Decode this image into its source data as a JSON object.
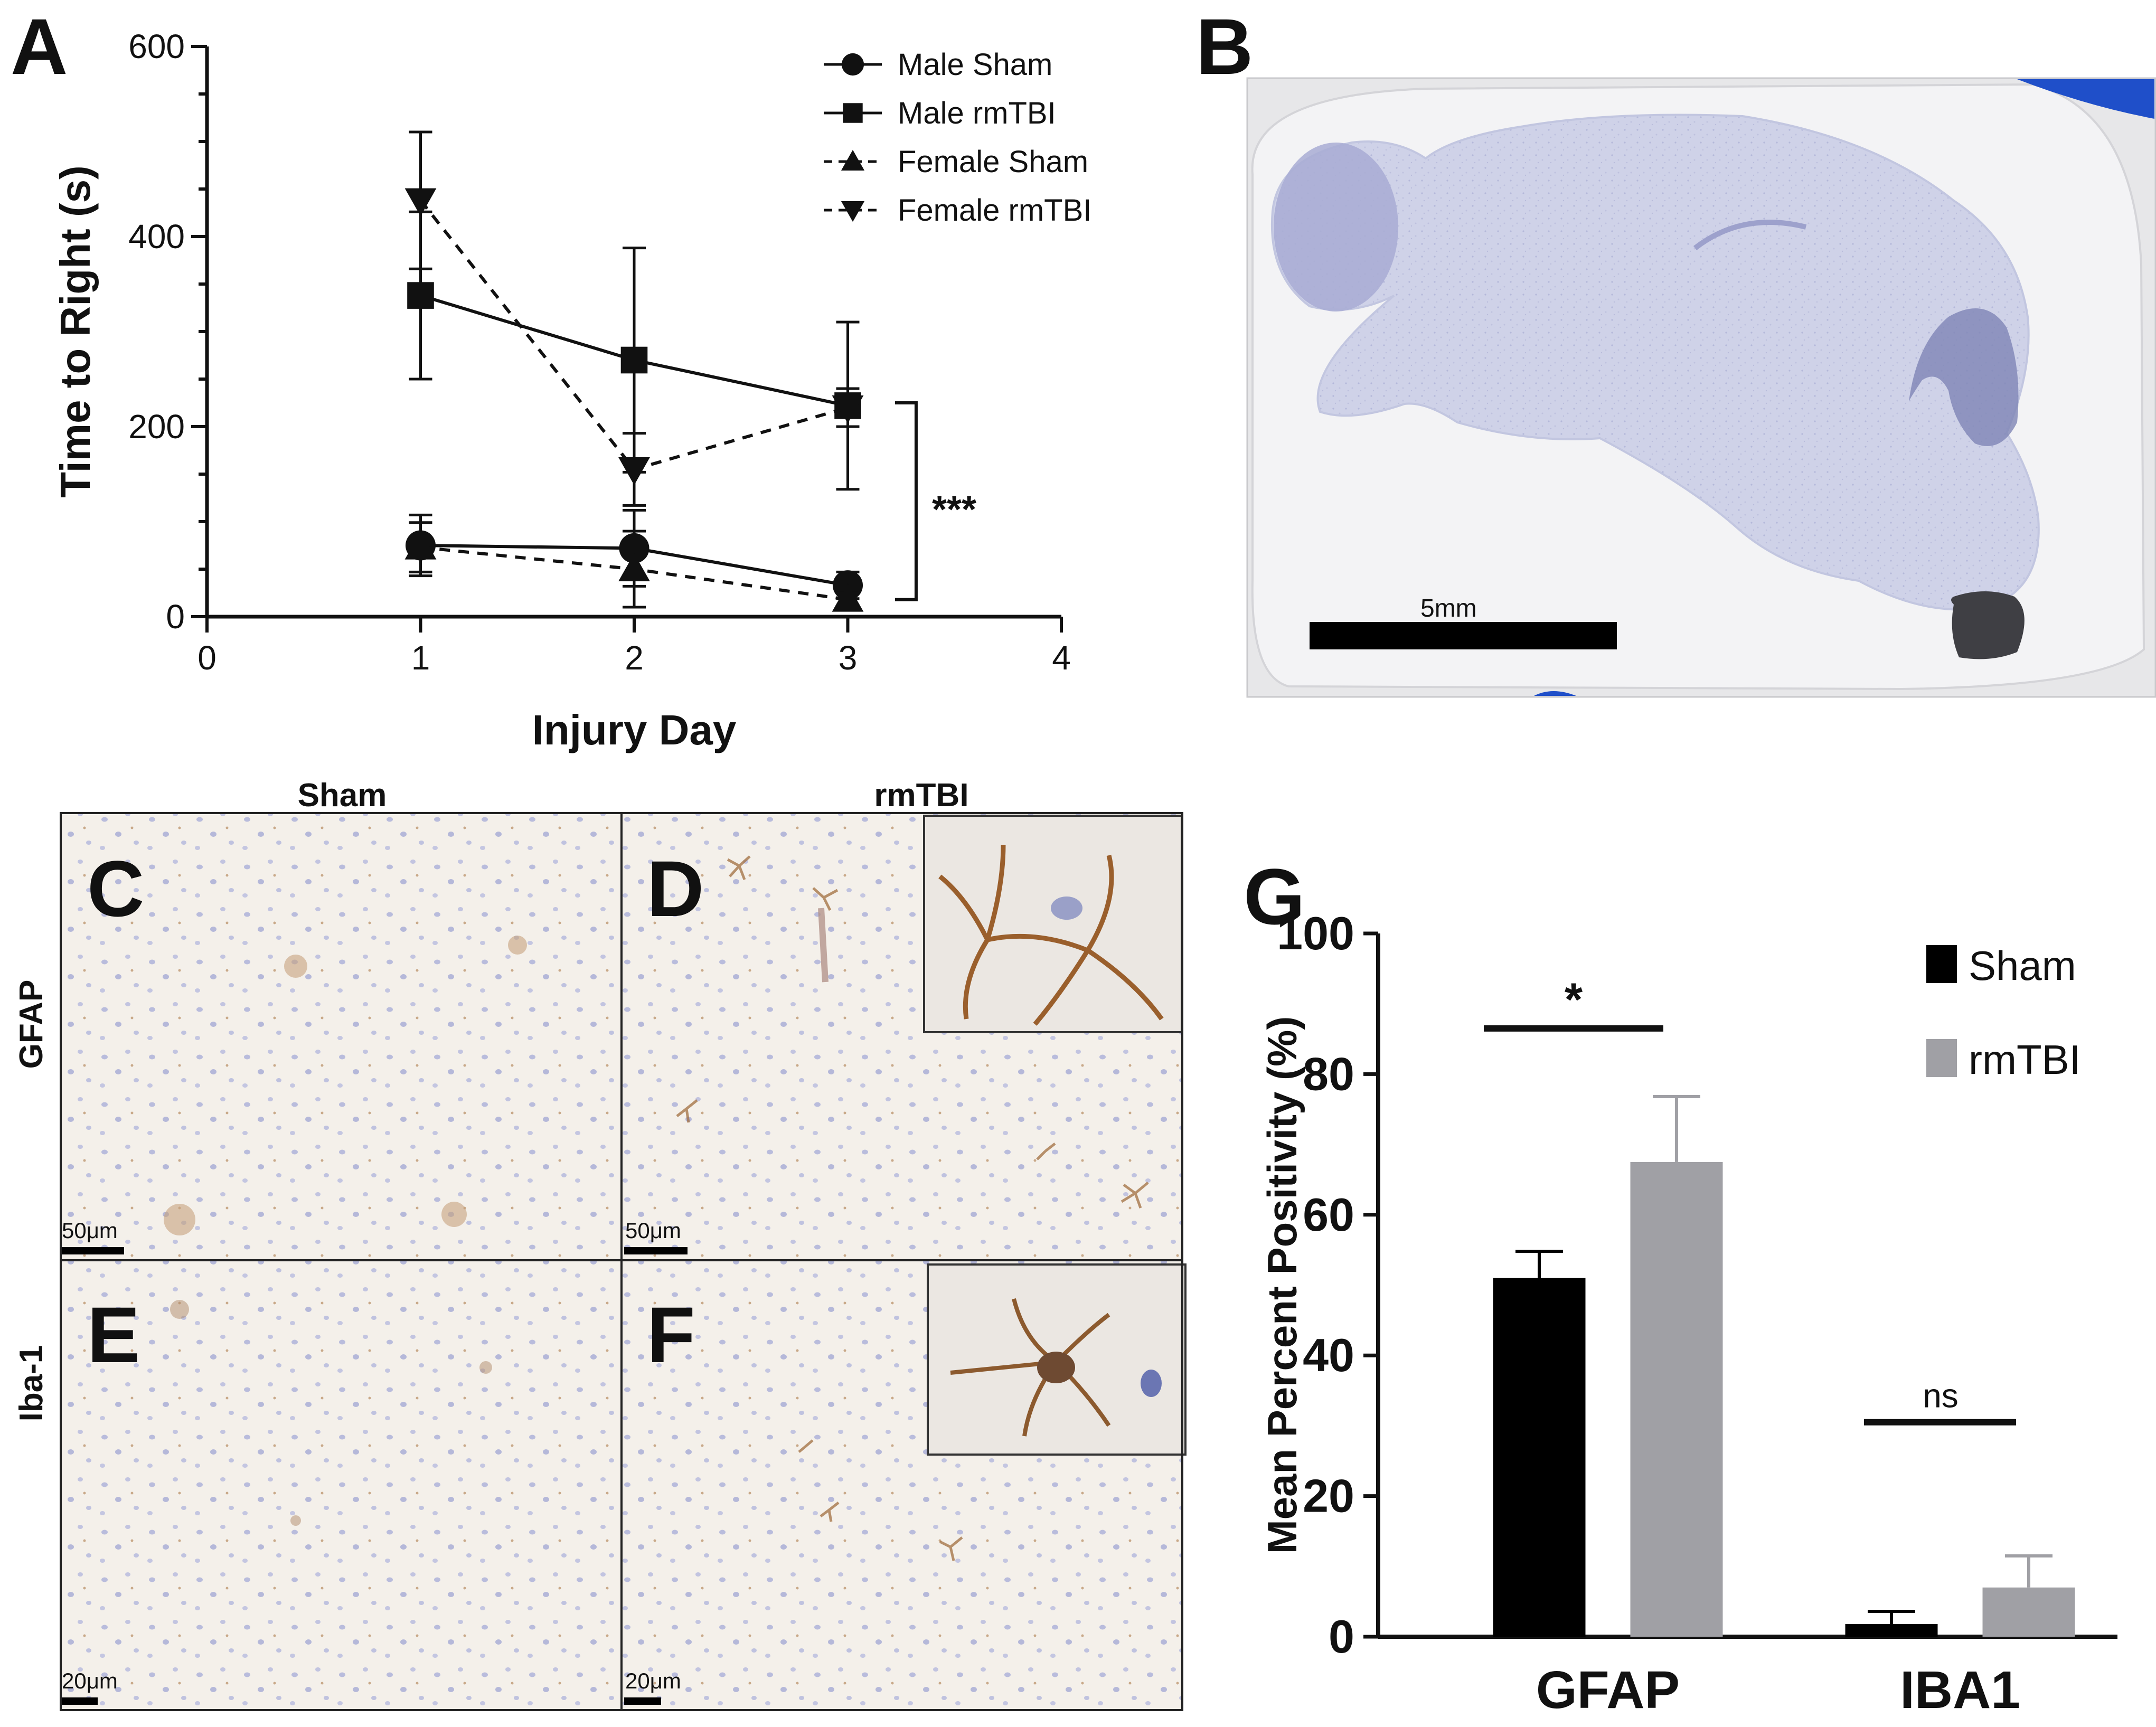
{
  "panels": {
    "A": "A",
    "B": "B",
    "C": "C",
    "D": "D",
    "E": "E",
    "F": "F",
    "G": "G"
  },
  "colors": {
    "stain_background": "#f4f0ea",
    "hematoxylin": "#b9bcdc",
    "dab_brown": "#a26f3f",
    "cerebellum": "#7e84b5",
    "blue_edge": "#1f4fc9",
    "gfap_sham_bar": "#000000",
    "gfap_rmtbi_bar": "#a0a0a5"
  },
  "histology": {
    "column_labels": [
      "Sham",
      "rmTBI"
    ],
    "row_labels": [
      "GFAP",
      "Iba-1"
    ],
    "scalebars": {
      "C": "50μm",
      "D": "50μm",
      "E": "20μm",
      "F": "20μm"
    },
    "panel_b_scalebar": "5mm"
  },
  "chart_data": [
    {
      "panel": "A",
      "type": "line",
      "xlabel": "Injury Day",
      "ylabel": "Time to  Right  (s)",
      "xlim": [
        0,
        4
      ],
      "ylim": [
        0,
        600
      ],
      "xticks": [
        0,
        1,
        2,
        3,
        4
      ],
      "yticks": [
        0,
        200,
        400,
        600
      ],
      "legend_position": "top-right",
      "series": [
        {
          "name": "Male Sham",
          "marker": "circle",
          "line": "solid",
          "x": [
            1,
            2,
            3
          ],
          "y": [
            75,
            72,
            33
          ],
          "err": [
            32,
            40,
            14
          ]
        },
        {
          "name": "Male rmTBI",
          "marker": "square",
          "line": "solid",
          "x": [
            1,
            2,
            3
          ],
          "y": [
            338,
            270,
            222
          ],
          "err": [
            88,
            118,
            88
          ]
        },
        {
          "name": "Female Sham",
          "marker": "triangle-up",
          "line": "dashed",
          "x": [
            1,
            2,
            3
          ],
          "y": [
            73,
            50,
            18
          ],
          "err": [
            26,
            40,
            10
          ]
        },
        {
          "name": "Female rmTBI",
          "marker": "triangle-down",
          "line": "dashed",
          "x": [
            1,
            2,
            3
          ],
          "y": [
            438,
            155,
            220
          ],
          "err": [
            72,
            38,
            20
          ]
        }
      ],
      "annotation": "***"
    },
    {
      "panel": "G",
      "type": "bar",
      "categories": [
        "GFAP",
        "IBA1"
      ],
      "ylabel": "Mean Percent Positivity (%)",
      "ylim": [
        0,
        100
      ],
      "yticks": [
        0,
        20,
        40,
        60,
        80,
        100
      ],
      "legend_position": "top-right",
      "series": [
        {
          "name": "Sham",
          "values": [
            51,
            1.8
          ],
          "err": [
            3.8,
            1.8
          ]
        },
        {
          "name": "rmTBI",
          "values": [
            67.5,
            7
          ],
          "err": [
            9.3,
            4.5
          ]
        }
      ],
      "annotations": [
        "*",
        "ns"
      ]
    }
  ]
}
